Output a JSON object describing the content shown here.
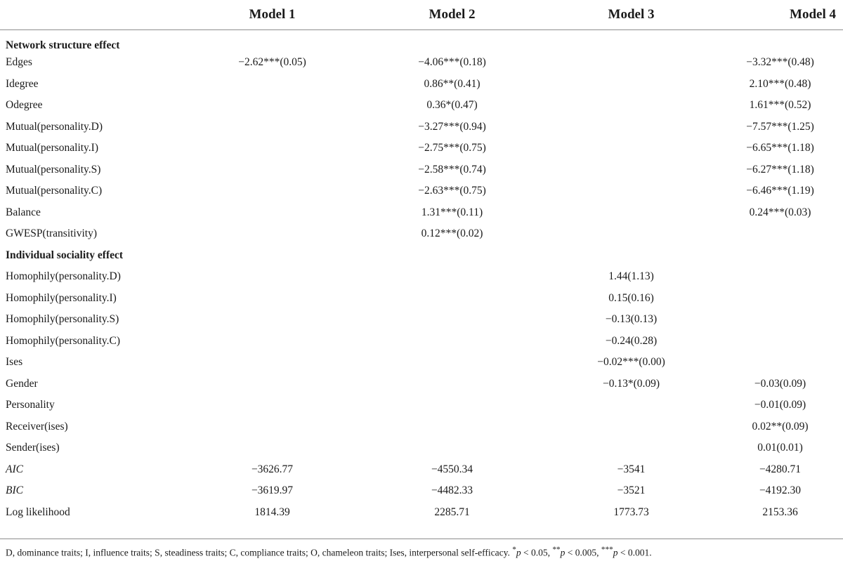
{
  "table": {
    "columns": [
      "",
      "Model 1",
      "Model 2",
      "Model 3",
      "Model 4"
    ],
    "rows": [
      {
        "kind": "section",
        "label": "Network structure effect",
        "values": [
          "",
          "",
          "",
          ""
        ]
      },
      {
        "kind": "data",
        "label": "Edges",
        "values": [
          "−2.62***(0.05)",
          "−4.06***(0.18)",
          "",
          "−3.32***(0.48)"
        ]
      },
      {
        "kind": "data",
        "label": "Idegree",
        "values": [
          "",
          "0.86**(0.41)",
          "",
          "2.10***(0.48)"
        ]
      },
      {
        "kind": "data",
        "label": "Odegree",
        "values": [
          "",
          "0.36*(0.47)",
          "",
          "1.61***(0.52)"
        ]
      },
      {
        "kind": "data",
        "label": "Mutual(personality.D)",
        "values": [
          "",
          "−3.27***(0.94)",
          "",
          "−7.57***(1.25)"
        ]
      },
      {
        "kind": "data",
        "label": "Mutual(personality.I)",
        "values": [
          "",
          "−2.75***(0.75)",
          "",
          "−6.65***(1.18)"
        ]
      },
      {
        "kind": "data",
        "label": "Mutual(personality.S)",
        "values": [
          "",
          "−2.58***(0.74)",
          "",
          "−6.27***(1.18)"
        ]
      },
      {
        "kind": "data",
        "label": "Mutual(personality.C)",
        "values": [
          "",
          "−2.63***(0.75)",
          "",
          "−6.46***(1.19)"
        ]
      },
      {
        "kind": "data",
        "label": "Balance",
        "values": [
          "",
          "1.31***(0.11)",
          "",
          "0.24***(0.03)"
        ]
      },
      {
        "kind": "data",
        "label": "GWESP(transitivity)",
        "values": [
          "",
          "0.12***(0.02)",
          "",
          ""
        ]
      },
      {
        "kind": "section",
        "label": "Individual sociality effect",
        "values": [
          "",
          "",
          "",
          ""
        ]
      },
      {
        "kind": "data",
        "label": "Homophily(personality.D)",
        "values": [
          "",
          "",
          "1.44(1.13)",
          ""
        ]
      },
      {
        "kind": "data",
        "label": "Homophily(personality.I)",
        "values": [
          "",
          "",
          "0.15(0.16)",
          ""
        ]
      },
      {
        "kind": "data",
        "label": "Homophily(personality.S)",
        "values": [
          "",
          "",
          "−0.13(0.13)",
          ""
        ]
      },
      {
        "kind": "data",
        "label": "Homophily(personality.C)",
        "values": [
          "",
          "",
          "−0.24(0.28)",
          ""
        ]
      },
      {
        "kind": "data",
        "label": "Ises",
        "values": [
          "",
          "",
          "−0.02***(0.00)",
          ""
        ]
      },
      {
        "kind": "data",
        "label": "Gender",
        "values": [
          "",
          "",
          "−0.13*(0.09)",
          "−0.03(0.09)"
        ]
      },
      {
        "kind": "data",
        "label": "Personality",
        "values": [
          "",
          "",
          "",
          "−0.01(0.09)"
        ]
      },
      {
        "kind": "data",
        "label": "Receiver(ises)",
        "values": [
          "",
          "",
          "",
          "0.02**(0.09)"
        ]
      },
      {
        "kind": "data",
        "label": "Sender(ises)",
        "values": [
          "",
          "",
          "",
          "0.01(0.01)"
        ]
      },
      {
        "kind": "stat-italic",
        "label": "AIC",
        "values": [
          "−3626.77",
          "−4550.34",
          "−3541",
          "−4280.71"
        ]
      },
      {
        "kind": "stat-italic",
        "label": "BIC",
        "values": [
          "−3619.97",
          "−4482.33",
          "−3521",
          "−4192.30"
        ]
      },
      {
        "kind": "stat",
        "label": "Log likelihood",
        "values": [
          "1814.39",
          "2285.71",
          "1773.73",
          "2153.36"
        ]
      }
    ]
  },
  "note": {
    "abbrev": "D, dominance traits; I, influence traits; S, steadiness traits; C, compliance traits; O, chameleon traits; Ises, interpersonal self-efficacy. ",
    "sig1_star": "*",
    "sig1_var": "p",
    "sig1_rest": " < 0.05, ",
    "sig2_star": "**",
    "sig2_var": "p",
    "sig2_rest": " < 0.005, ",
    "sig3_star": "***",
    "sig3_var": "p",
    "sig3_rest": " < 0.001."
  }
}
